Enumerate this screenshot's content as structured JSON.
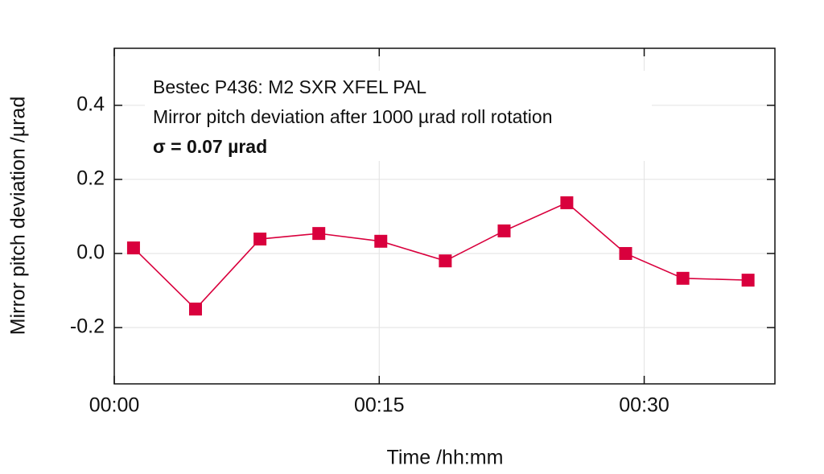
{
  "chart_data": {
    "type": "line",
    "annotations": [
      "Bestec P436: M2 SXR XFEL PAL",
      "Mirror pitch deviation after 1000 µrad roll rotation",
      "σ = 0.07 µrad"
    ],
    "x_label": "Time /hh:mm",
    "y_label": "Mirror pitch deviation /µrad",
    "x": [
      1.09,
      4.6,
      8.25,
      11.58,
      15.09,
      18.74,
      22.07,
      25.62,
      28.95,
      32.19,
      35.88
    ],
    "series": [
      {
        "color": "#d9003d",
        "values": [
          0.015,
          -0.15,
          0.039,
          0.054,
          0.033,
          -0.02,
          0.061,
          0.137,
          0.0,
          -0.067,
          -0.072
        ]
      }
    ],
    "xlim": [
      0,
      37.4
    ],
    "xticks": [
      {
        "value": 0,
        "label": "00:00"
      },
      {
        "value": 15,
        "label": "00:15"
      },
      {
        "value": 30,
        "label": "00:30"
      }
    ],
    "ylim": [
      -0.352,
      0.554
    ],
    "yticks": [
      0.4,
      0.2,
      {
        "value": 0,
        "label": "0.0"
      },
      -0.2
    ],
    "grid": true
  }
}
